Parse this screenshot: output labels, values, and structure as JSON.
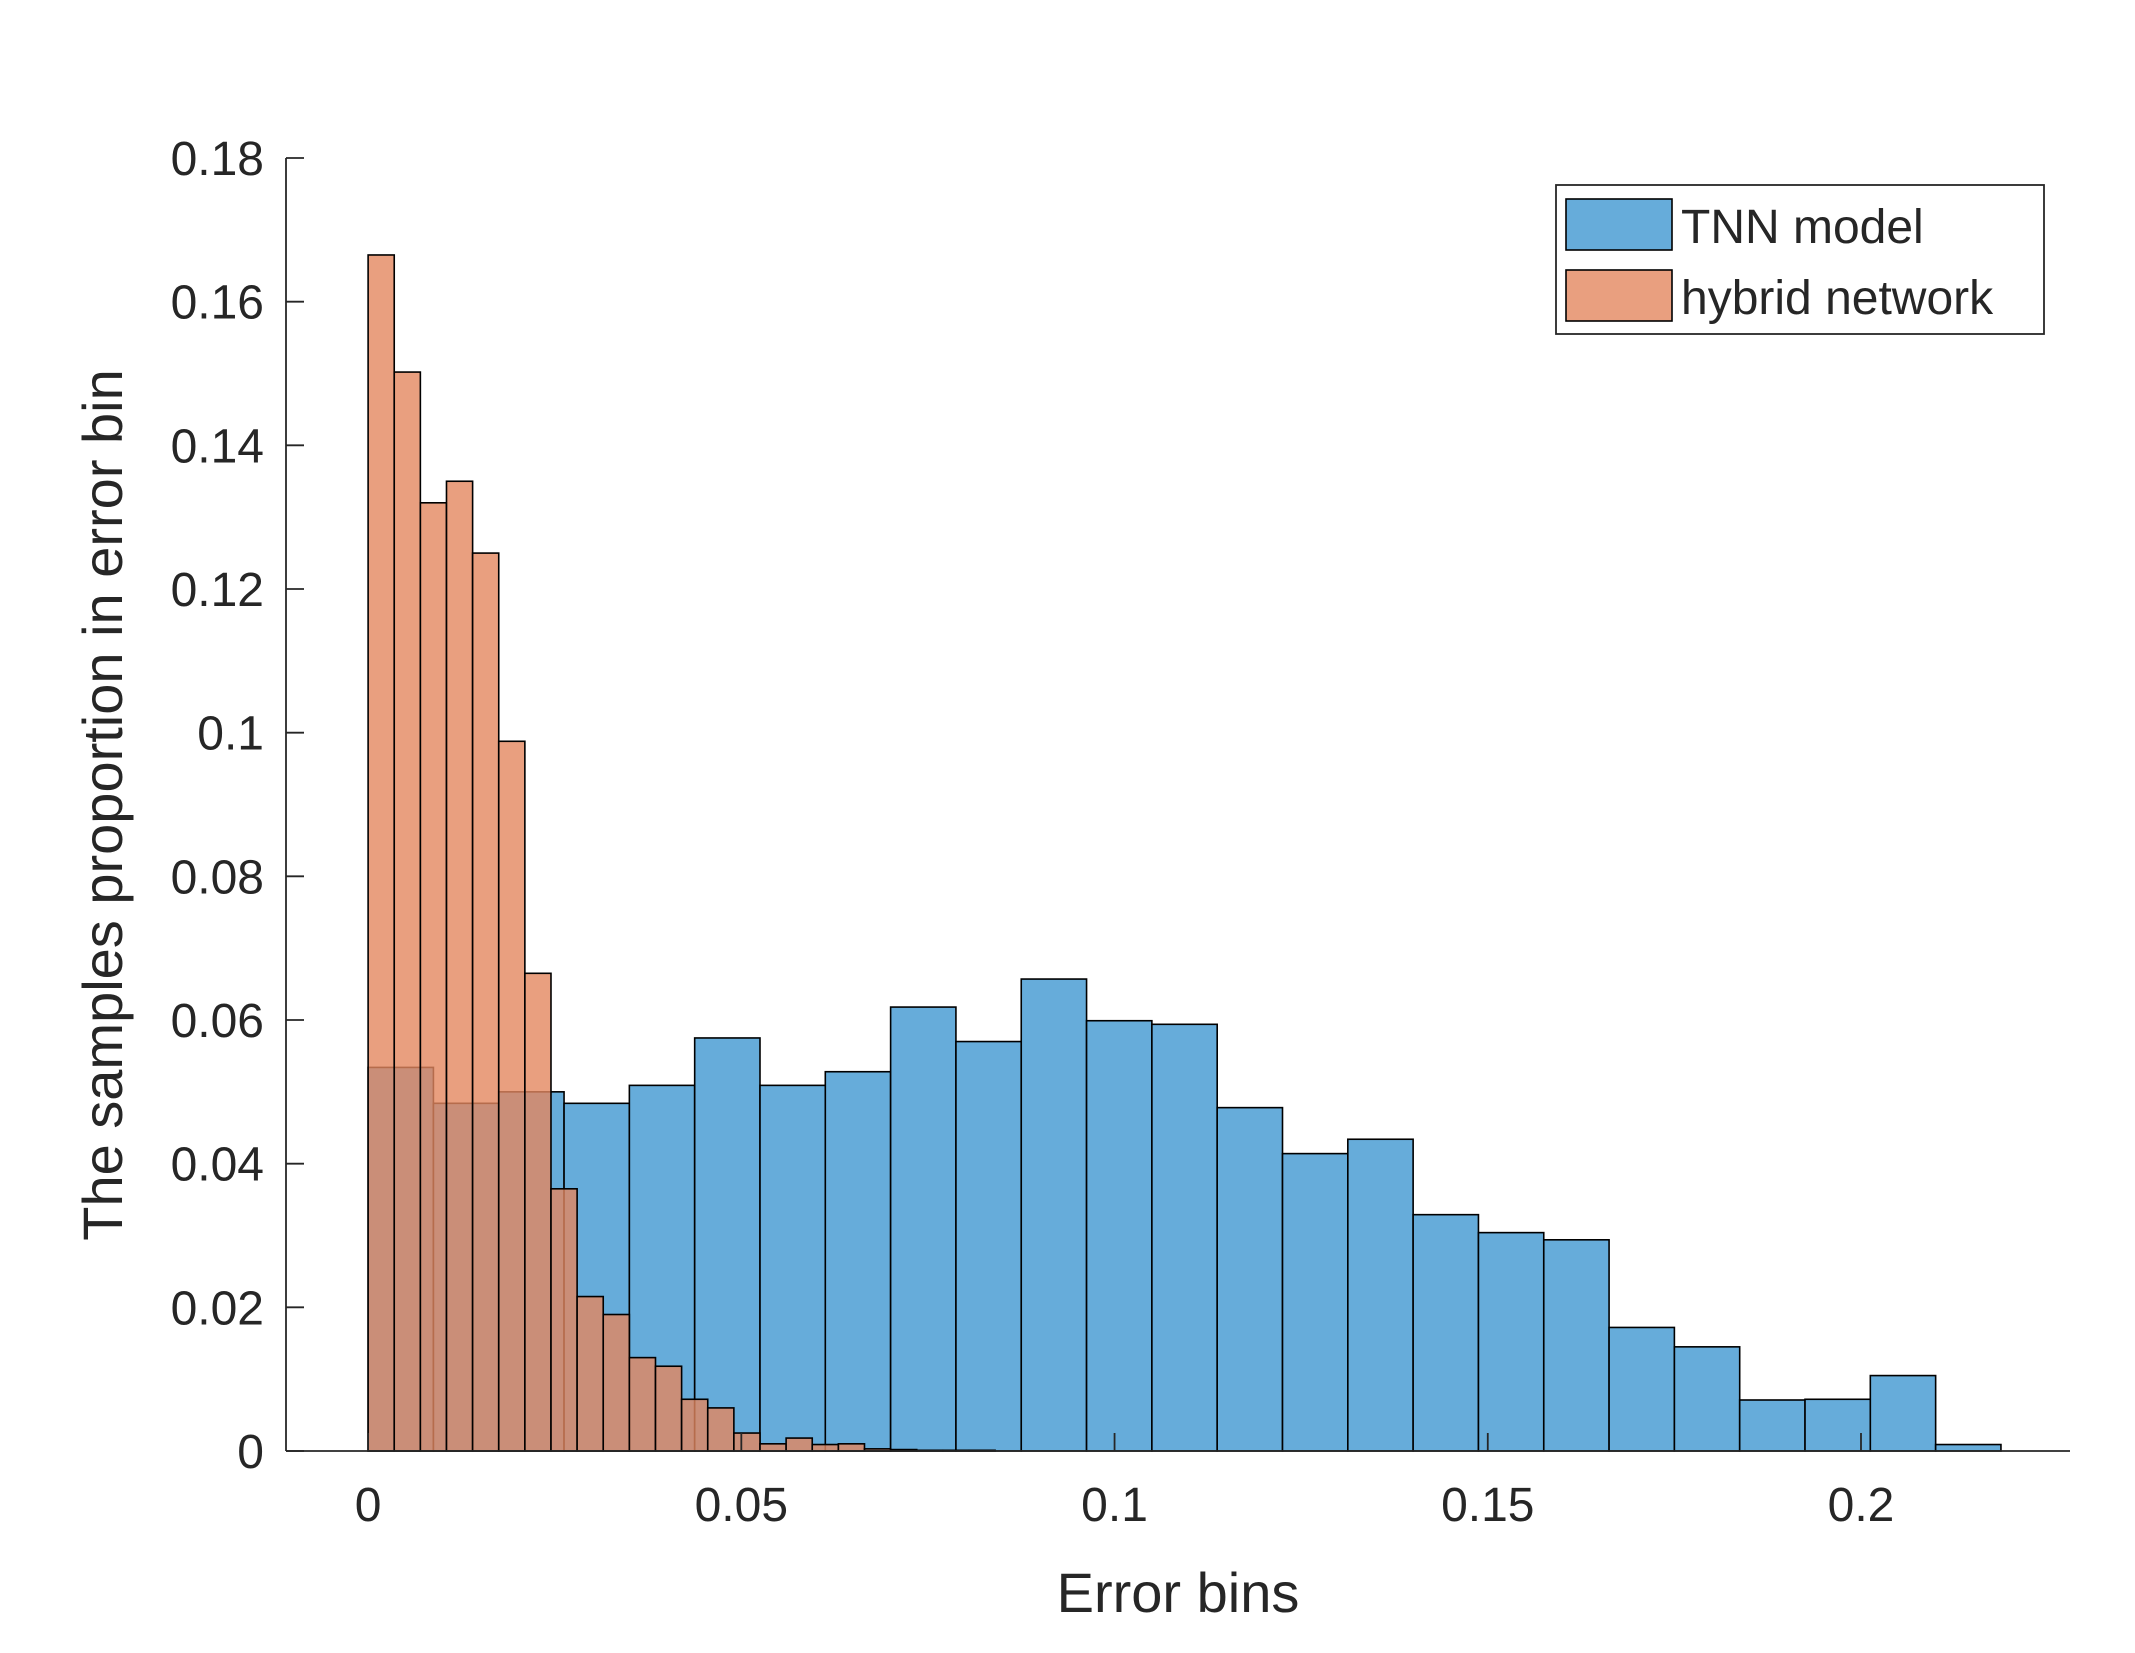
{
  "chart_data": {
    "type": "bar",
    "subtype": "overlapping-histogram",
    "title": "",
    "xlabel": "Error bins",
    "ylabel": "The samples proportion in error bin",
    "xlim": [
      -0.011,
      0.228
    ],
    "ylim": [
      0,
      0.18
    ],
    "xticks": [
      0,
      0.05,
      0.1,
      0.15,
      0.2
    ],
    "xtick_labels": [
      "0",
      "0.05",
      "0.1",
      "0.15",
      "0.2"
    ],
    "yticks": [
      0,
      0.02,
      0.04,
      0.06,
      0.08,
      0.1,
      0.12,
      0.14,
      0.16,
      0.18
    ],
    "ytick_labels": [
      "0",
      "0.02",
      "0.04",
      "0.06",
      "0.08",
      "0.1",
      "0.12",
      "0.14",
      "0.16",
      "0.18"
    ],
    "legend_position": "top-right",
    "series": [
      {
        "name": "TNN model",
        "color": "#5ea8d8",
        "opacity": 0.95,
        "bin_start": 0,
        "bin_width": 0.00875,
        "values": [
          0.0534,
          0.0484,
          0.05,
          0.0484,
          0.0509,
          0.0575,
          0.0509,
          0.0528,
          0.0618,
          0.057,
          0.0657,
          0.0599,
          0.0594,
          0.0478,
          0.0414,
          0.0434,
          0.0329,
          0.0304,
          0.0294,
          0.0172,
          0.0145,
          0.0071,
          0.0072,
          0.0105,
          0.0009
        ]
      },
      {
        "name": "hybrid network",
        "color": "#e3875f",
        "opacity": 0.8,
        "bin_start": 0,
        "bin_width": 0.0035,
        "values": [
          0.1665,
          0.1502,
          0.132,
          0.135,
          0.125,
          0.0988,
          0.0665,
          0.0365,
          0.0215,
          0.019,
          0.013,
          0.0118,
          0.0072,
          0.006,
          0.0025,
          0.001,
          0.0018,
          0.0009,
          0.001,
          0.0003,
          0.0002,
          0.0001,
          0.0001,
          0.0001
        ]
      }
    ]
  }
}
